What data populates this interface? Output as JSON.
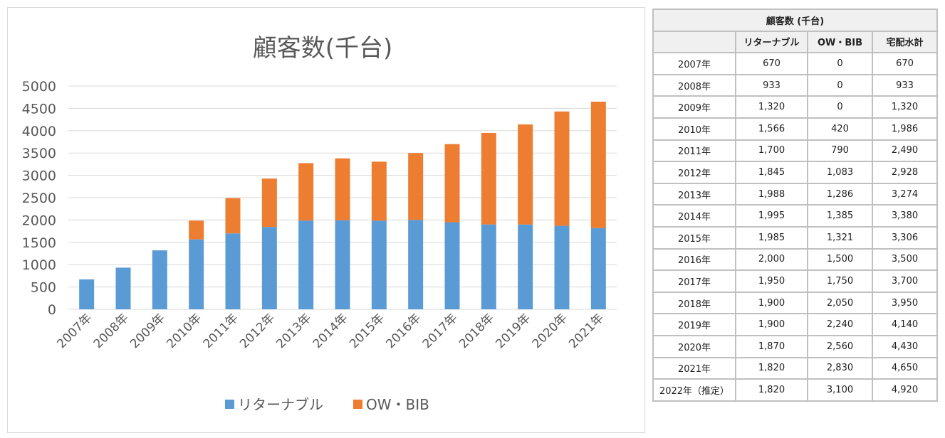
{
  "chart_data": {
    "type": "bar",
    "stacked": true,
    "title": "顧客数(千台)",
    "categories": [
      "2007年",
      "2008年",
      "2009年",
      "2010年",
      "2011年",
      "2012年",
      "2013年",
      "2014年",
      "2015年",
      "2016年",
      "2017年",
      "2018年",
      "2019年",
      "2020年",
      "2021年"
    ],
    "series": [
      {
        "name": "リターナブル",
        "color": "#5b9bd5",
        "values": [
          670,
          933,
          1320,
          1566,
          1700,
          1845,
          1988,
          1995,
          1985,
          2000,
          1950,
          1900,
          1900,
          1870,
          1820
        ]
      },
      {
        "name": "OW・BIB",
        "color": "#ed7d31",
        "values": [
          0,
          0,
          0,
          420,
          790,
          1083,
          1286,
          1385,
          1321,
          1500,
          1750,
          2050,
          2240,
          2560,
          2830
        ]
      }
    ],
    "ylim": [
      0,
      5000
    ],
    "yticks": [
      0,
      500,
      1000,
      1500,
      2000,
      2500,
      3000,
      3500,
      4000,
      4500,
      5000
    ],
    "grid": true,
    "legend": "bottom"
  },
  "table": {
    "title": "顧客数 (千台)",
    "headers": [
      "",
      "リターナブル",
      "OW・BIB",
      "宅配水計"
    ],
    "rows": [
      [
        "2007年",
        "670",
        "0",
        "670"
      ],
      [
        "2008年",
        "933",
        "0",
        "933"
      ],
      [
        "2009年",
        "1,320",
        "0",
        "1,320"
      ],
      [
        "2010年",
        "1,566",
        "420",
        "1,986"
      ],
      [
        "2011年",
        "1,700",
        "790",
        "2,490"
      ],
      [
        "2012年",
        "1,845",
        "1,083",
        "2,928"
      ],
      [
        "2013年",
        "1,988",
        "1,286",
        "3,274"
      ],
      [
        "2014年",
        "1,995",
        "1,385",
        "3,380"
      ],
      [
        "2015年",
        "1,985",
        "1,321",
        "3,306"
      ],
      [
        "2016年",
        "2,000",
        "1,500",
        "3,500"
      ],
      [
        "2017年",
        "1,950",
        "1,750",
        "3,700"
      ],
      [
        "2018年",
        "1,900",
        "2,050",
        "3,950"
      ],
      [
        "2019年",
        "1,900",
        "2,240",
        "4,140"
      ],
      [
        "2020年",
        "1,870",
        "2,560",
        "4,430"
      ],
      [
        "2021年",
        "1,820",
        "2,830",
        "4,650"
      ],
      [
        "2022年（推定）",
        "1,820",
        "3,100",
        "4,920"
      ]
    ]
  }
}
